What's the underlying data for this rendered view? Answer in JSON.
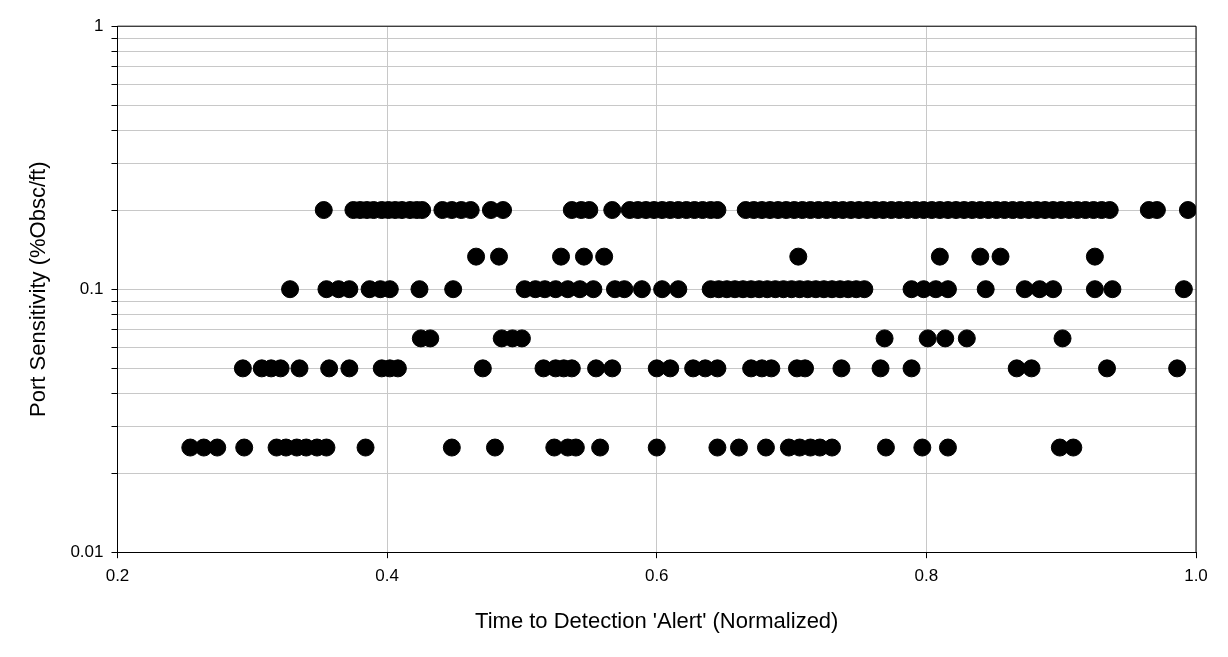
{
  "chart_data": {
    "type": "scatter",
    "xlabel": "Time to Detection 'Alert' (Normalized)",
    "ylabel": "Port Sensitivity (%Obsc/ft)",
    "xlim": [
      0.2,
      1.0
    ],
    "xticks": [
      0.2,
      0.4,
      0.6,
      0.8,
      {
        "value": 1,
        "label": "1.0"
      }
    ],
    "ylim": [
      0.01,
      1
    ],
    "yticks": [
      0.01,
      {
        "value": 0.02,
        "label": null
      },
      {
        "value": 0.03,
        "label": null
      },
      {
        "value": 0.04,
        "label": null
      },
      {
        "value": 0.05,
        "label": null
      },
      {
        "value": 0.06,
        "label": null
      },
      {
        "value": 0.07,
        "label": null
      },
      {
        "value": 0.08,
        "label": null
      },
      {
        "value": 0.09,
        "label": null
      },
      0.1,
      {
        "value": 0.2,
        "label": null
      },
      {
        "value": 0.3,
        "label": null
      },
      {
        "value": 0.4,
        "label": null
      },
      {
        "value": 0.5,
        "label": null
      },
      {
        "value": 0.6,
        "label": null
      },
      {
        "value": 0.7,
        "label": null
      },
      {
        "value": 0.8,
        "label": null
      },
      {
        "value": 0.9,
        "label": null
      },
      1
    ],
    "log": "y",
    "grid": true,
    "legend": false,
    "marker": "circle",
    "series": [
      {
        "color": "#000000",
        "x": [
          0.353,
          0.375,
          0.38,
          0.385,
          0.39,
          0.396,
          0.401,
          0.406,
          0.411,
          0.417,
          0.422,
          0.426,
          0.441,
          0.448,
          0.455,
          0.462,
          0.477,
          0.486,
          0.537,
          0.544,
          0.55,
          0.567,
          0.58,
          0.586,
          0.592,
          0.598,
          0.604,
          0.61,
          0.616,
          0.622,
          0.628,
          0.634,
          0.64,
          0.645,
          0.666,
          0.672,
          0.678,
          0.684,
          0.69,
          0.696,
          0.702,
          0.708,
          0.714,
          0.72,
          0.726,
          0.732,
          0.738,
          0.744,
          0.75,
          0.756,
          0.762,
          0.768,
          0.774,
          0.78,
          0.786,
          0.792,
          0.798,
          0.804,
          0.81,
          0.816,
          0.822,
          0.828,
          0.834,
          0.84,
          0.846,
          0.852,
          0.858,
          0.864,
          0.87,
          0.876,
          0.882,
          0.888,
          0.894,
          0.9,
          0.906,
          0.912,
          0.918,
          0.924,
          0.93,
          0.936,
          0.965,
          0.971,
          0.994
        ],
        "values": [
          0.2,
          0.2,
          0.2,
          0.2,
          0.2,
          0.2,
          0.2,
          0.2,
          0.2,
          0.2,
          0.2,
          0.2,
          0.2,
          0.2,
          0.2,
          0.2,
          0.2,
          0.2,
          0.2,
          0.2,
          0.2,
          0.2,
          0.2,
          0.2,
          0.2,
          0.2,
          0.2,
          0.2,
          0.2,
          0.2,
          0.2,
          0.2,
          0.2,
          0.2,
          0.2,
          0.2,
          0.2,
          0.2,
          0.2,
          0.2,
          0.2,
          0.2,
          0.2,
          0.2,
          0.2,
          0.2,
          0.2,
          0.2,
          0.2,
          0.2,
          0.2,
          0.2,
          0.2,
          0.2,
          0.2,
          0.2,
          0.2,
          0.2,
          0.2,
          0.2,
          0.2,
          0.2,
          0.2,
          0.2,
          0.2,
          0.2,
          0.2,
          0.2,
          0.2,
          0.2,
          0.2,
          0.2,
          0.2,
          0.2,
          0.2,
          0.2,
          0.2,
          0.2,
          0.2,
          0.2,
          0.2,
          0.2,
          0.2
        ]
      },
      {
        "color": "#000000",
        "x": [
          0.466,
          0.483,
          0.529,
          0.546,
          0.561,
          0.705,
          0.81,
          0.84,
          0.855,
          0.925
        ],
        "values": [
          0.133,
          0.133,
          0.133,
          0.133,
          0.133,
          0.133,
          0.133,
          0.133,
          0.133,
          0.133
        ]
      },
      {
        "color": "#000000",
        "x": [
          0.328,
          0.355,
          0.364,
          0.372,
          0.387,
          0.395,
          0.402,
          0.424,
          0.449,
          0.502,
          0.51,
          0.517,
          0.525,
          0.534,
          0.543,
          0.553,
          0.569,
          0.576,
          0.589,
          0.604,
          0.616,
          0.64,
          0.646,
          0.652,
          0.658,
          0.664,
          0.67,
          0.676,
          0.682,
          0.688,
          0.694,
          0.7,
          0.706,
          0.712,
          0.718,
          0.724,
          0.73,
          0.736,
          0.742,
          0.748,
          0.754,
          0.789,
          0.798,
          0.807,
          0.816,
          0.844,
          0.873,
          0.884,
          0.894,
          0.925,
          0.938,
          0.991
        ],
        "values": [
          0.1,
          0.1,
          0.1,
          0.1,
          0.1,
          0.1,
          0.1,
          0.1,
          0.1,
          0.1,
          0.1,
          0.1,
          0.1,
          0.1,
          0.1,
          0.1,
          0.1,
          0.1,
          0.1,
          0.1,
          0.1,
          0.1,
          0.1,
          0.1,
          0.1,
          0.1,
          0.1,
          0.1,
          0.1,
          0.1,
          0.1,
          0.1,
          0.1,
          0.1,
          0.1,
          0.1,
          0.1,
          0.1,
          0.1,
          0.1,
          0.1,
          0.1,
          0.1,
          0.1,
          0.1,
          0.1,
          0.1,
          0.1,
          0.1,
          0.1,
          0.1,
          0.1
        ]
      },
      {
        "color": "#000000",
        "x": [
          0.425,
          0.432,
          0.485,
          0.493,
          0.5,
          0.769,
          0.801,
          0.814,
          0.83,
          0.901
        ],
        "values": [
          0.065,
          0.065,
          0.065,
          0.065,
          0.065,
          0.065,
          0.065,
          0.065,
          0.065,
          0.065
        ]
      },
      {
        "color": "#000000",
        "x": [
          0.293,
          0.307,
          0.314,
          0.321,
          0.335,
          0.357,
          0.372,
          0.396,
          0.402,
          0.408,
          0.471,
          0.516,
          0.525,
          0.531,
          0.537,
          0.555,
          0.567,
          0.6,
          0.61,
          0.627,
          0.636,
          0.645,
          0.67,
          0.678,
          0.685,
          0.704,
          0.71,
          0.737,
          0.766,
          0.789,
          0.867,
          0.878,
          0.934,
          0.986
        ],
        "values": [
          0.05,
          0.05,
          0.05,
          0.05,
          0.05,
          0.05,
          0.05,
          0.05,
          0.05,
          0.05,
          0.05,
          0.05,
          0.05,
          0.05,
          0.05,
          0.05,
          0.05,
          0.05,
          0.05,
          0.05,
          0.05,
          0.05,
          0.05,
          0.05,
          0.05,
          0.05,
          0.05,
          0.05,
          0.05,
          0.05,
          0.05,
          0.05,
          0.05,
          0.05
        ]
      },
      {
        "color": "#000000",
        "x": [
          0.254,
          0.264,
          0.274,
          0.294,
          0.318,
          0.325,
          0.333,
          0.34,
          0.348,
          0.355,
          0.384,
          0.448,
          0.48,
          0.524,
          0.534,
          0.54,
          0.558,
          0.6,
          0.645,
          0.661,
          0.681,
          0.698,
          0.706,
          0.714,
          0.721,
          0.73,
          0.77,
          0.797,
          0.816,
          0.899,
          0.909
        ],
        "values": [
          0.025,
          0.025,
          0.025,
          0.025,
          0.025,
          0.025,
          0.025,
          0.025,
          0.025,
          0.025,
          0.025,
          0.025,
          0.025,
          0.025,
          0.025,
          0.025,
          0.025,
          0.025,
          0.025,
          0.025,
          0.025,
          0.025,
          0.025,
          0.025,
          0.025,
          0.025,
          0.025,
          0.025,
          0.025,
          0.025,
          0.025
        ]
      }
    ]
  }
}
